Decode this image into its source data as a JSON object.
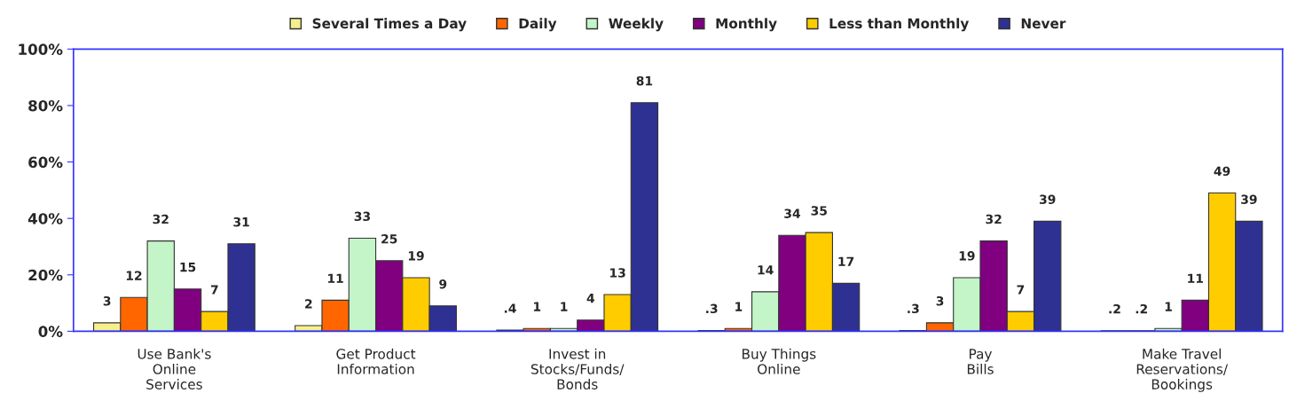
{
  "chart_data": {
    "type": "bar",
    "categories": [
      "Use Bank's\nOnline\nServices",
      "Get Product\nInformation",
      "Invest in\nStocks/Funds/\nBonds",
      "Buy Things\nOnline",
      "Pay\nBills",
      "Make Travel\nReservations/\nBookings"
    ],
    "series": [
      {
        "name": "Several Times a Day",
        "color": "#f5f08c",
        "values": [
          3,
          2,
          0.4,
          0.3,
          0.3,
          0.2
        ],
        "value_labels": [
          "3",
          "2",
          ".4",
          ".3",
          ".3",
          ".2"
        ]
      },
      {
        "name": "Daily",
        "color": "#ff6600",
        "values": [
          12,
          11,
          1,
          1,
          3,
          0.2
        ],
        "value_labels": [
          "12",
          "11",
          "1",
          "1",
          "3",
          ".2"
        ]
      },
      {
        "name": "Weekly",
        "color": "#c4f5c8",
        "values": [
          32,
          33,
          1,
          14,
          19,
          1
        ],
        "value_labels": [
          "32",
          "33",
          "1",
          "14",
          "19",
          "1"
        ]
      },
      {
        "name": "Monthly",
        "color": "#800080",
        "values": [
          15,
          25,
          4,
          34,
          32,
          11
        ],
        "value_labels": [
          "15",
          "25",
          "4",
          "34",
          "32",
          "11"
        ]
      },
      {
        "name": "Less than Monthly",
        "color": "#ffcc00",
        "values": [
          7,
          19,
          13,
          35,
          7,
          49
        ],
        "value_labels": [
          "7",
          "19",
          "13",
          "35",
          "7",
          "49"
        ]
      },
      {
        "name": "Never",
        "color": "#2e3192",
        "values": [
          31,
          9,
          81,
          17,
          39,
          39
        ],
        "value_labels": [
          "31",
          "9",
          "81",
          "17",
          "39",
          "39"
        ]
      }
    ],
    "ylim": [
      0,
      100
    ],
    "yticks": [
      {
        "value": 0,
        "label": "0%"
      },
      {
        "value": 20,
        "label": "20%"
      },
      {
        "value": 40,
        "label": "40%"
      },
      {
        "value": 60,
        "label": "60%"
      },
      {
        "value": 80,
        "label": "80%"
      },
      {
        "value": 100,
        "label": "100%"
      }
    ],
    "grid": false,
    "legend": "top"
  }
}
